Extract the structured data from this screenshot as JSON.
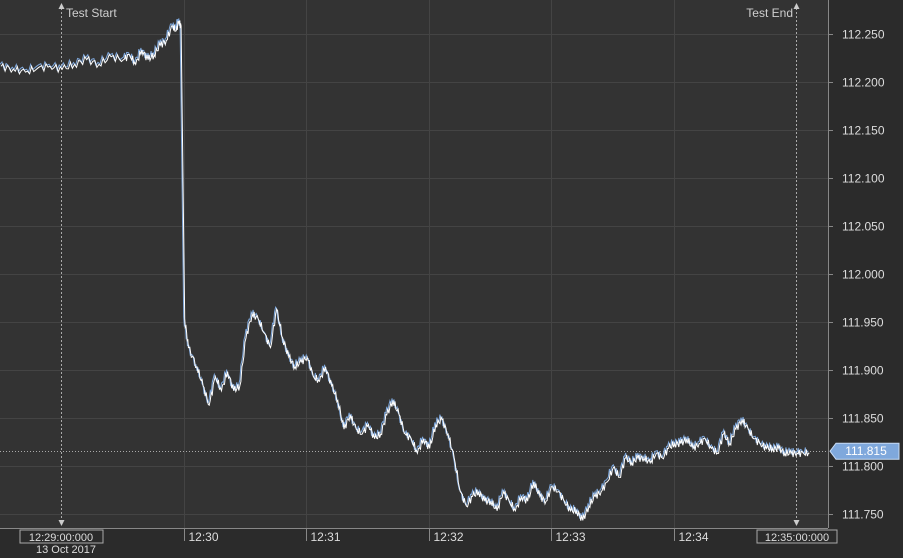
{
  "markers": {
    "start_label": "Test Start",
    "end_label": "Test End"
  },
  "current_price_label": "111.815",
  "date_label": "13 Oct 2017",
  "x_boxed_labels": {
    "start": "12:29:00:000",
    "end": "12:35:00:000"
  },
  "colors": {
    "background": "#333333",
    "grid": "#444444",
    "bid_line": "#7fa8dc",
    "ask_line": "#ffffff",
    "price_tag": "#7fa8dc"
  },
  "chart_data": {
    "type": "line",
    "title": "",
    "xlabel": "",
    "ylabel": "",
    "x_ticks": [
      "12:30",
      "12:31",
      "12:32",
      "12:33",
      "12:34"
    ],
    "y_ticks": [
      111.75,
      111.8,
      111.85,
      111.9,
      111.95,
      112.0,
      112.05,
      112.1,
      112.15,
      112.2,
      112.25
    ],
    "ylim": [
      111.735,
      112.285
    ],
    "xlim_minutes": [
      28.5,
      35.26
    ],
    "current_price": 111.815,
    "test_start_minute": 29.0,
    "test_end_minute": 35.0,
    "grid": true,
    "series": [
      {
        "x_minutes": [
          28.5,
          28.6,
          28.7,
          28.8,
          28.9,
          29.0,
          29.1,
          29.2,
          29.3,
          29.4,
          29.5,
          29.55,
          29.6,
          29.65,
          29.7,
          29.75,
          29.8,
          29.85,
          29.9,
          29.93,
          29.95,
          29.97,
          30.0,
          30.03,
          30.1,
          30.15,
          30.2,
          30.25,
          30.3,
          30.35,
          30.4,
          30.45,
          30.5,
          30.55,
          30.6,
          30.65,
          30.7,
          30.75,
          30.8,
          30.85,
          30.9,
          30.95,
          31.0,
          31.05,
          31.1,
          31.15,
          31.2,
          31.25,
          31.3,
          31.35,
          31.4,
          31.45,
          31.5,
          31.55,
          31.6,
          31.65,
          31.7,
          31.75,
          31.8,
          31.85,
          31.9,
          31.95,
          32.0,
          32.05,
          32.1,
          32.15,
          32.2,
          32.25,
          32.3,
          32.35,
          32.4,
          32.45,
          32.5,
          32.55,
          32.6,
          32.65,
          32.7,
          32.75,
          32.8,
          32.85,
          32.9,
          32.95,
          33.0,
          33.05,
          33.1,
          33.15,
          33.2,
          33.25,
          33.3,
          33.35,
          33.4,
          33.45,
          33.5,
          33.55,
          33.6,
          33.65,
          33.7,
          33.75,
          33.8,
          33.85,
          33.9,
          33.95,
          34.0,
          34.05,
          34.1,
          34.15,
          34.2,
          34.25,
          34.3,
          34.35,
          34.4,
          34.45,
          34.5,
          34.55,
          34.6,
          34.65,
          34.7,
          34.75,
          34.8,
          34.85,
          34.9,
          34.95,
          35.0,
          35.05,
          35.1
        ],
        "values": [
          112.218,
          112.215,
          112.212,
          112.216,
          112.218,
          112.215,
          112.22,
          112.225,
          112.22,
          112.228,
          112.225,
          112.23,
          112.22,
          112.235,
          112.225,
          112.23,
          112.24,
          112.245,
          112.26,
          112.255,
          112.265,
          112.26,
          111.955,
          111.925,
          111.905,
          111.885,
          111.865,
          111.895,
          111.88,
          111.9,
          111.88,
          111.885,
          111.935,
          111.96,
          111.955,
          111.94,
          111.925,
          111.965,
          111.935,
          111.915,
          111.905,
          111.91,
          111.915,
          111.895,
          111.89,
          111.905,
          111.885,
          111.87,
          111.84,
          111.855,
          111.84,
          111.835,
          111.845,
          111.83,
          111.835,
          111.855,
          111.87,
          111.855,
          111.835,
          111.83,
          111.815,
          111.83,
          111.82,
          111.845,
          111.85,
          111.835,
          111.81,
          111.775,
          111.76,
          111.77,
          111.775,
          111.765,
          111.765,
          111.755,
          111.775,
          111.765,
          111.755,
          111.77,
          111.765,
          111.785,
          111.77,
          111.765,
          111.78,
          111.775,
          111.765,
          111.755,
          111.755,
          111.745,
          111.76,
          111.77,
          111.775,
          111.785,
          111.8,
          111.79,
          111.81,
          111.805,
          111.81,
          111.81,
          111.805,
          111.815,
          111.81,
          111.82,
          111.825,
          111.825,
          111.83,
          111.82,
          111.825,
          111.83,
          111.82,
          111.815,
          111.835,
          111.825,
          111.84,
          111.85,
          111.84,
          111.83,
          111.825,
          111.82,
          111.82,
          111.82,
          111.815,
          111.815,
          111.815,
          111.815,
          111.815
        ]
      }
    ]
  }
}
